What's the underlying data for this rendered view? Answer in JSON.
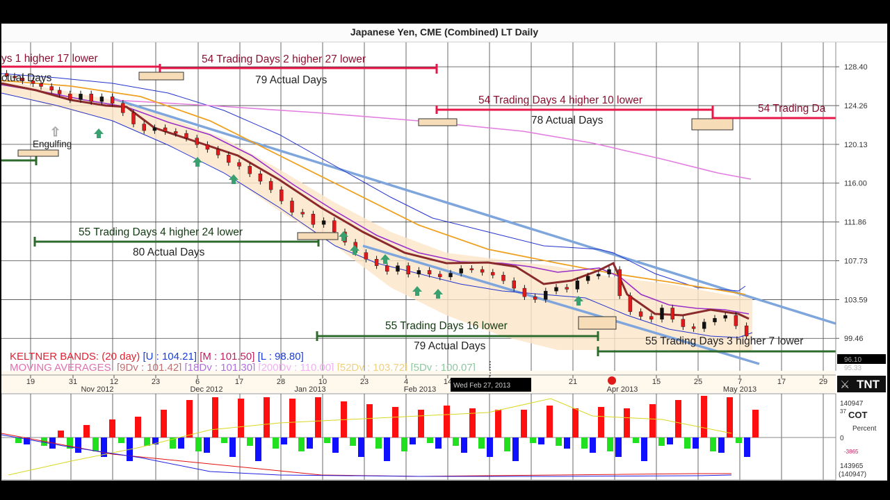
{
  "window": {
    "title": "Japanese Yen, CME (Combined) LT Daily"
  },
  "legend": {
    "keltner_text": "KELTNER BANDS: (20 day) [U : 104.21] [M : 101.50] [L : 98.80]",
    "ma_text": "MOVING AVERAGES: [9Dy : 101.42] [18Dy : 101.30] [200Dy : 110.00] [52Dy : 103.72] [5Dy : 100.07]",
    "keltner_label": "KELTNER BANDS: (20 day)",
    "keltner_u": "[U : 104.21]",
    "keltner_m": "[M : 101.50]",
    "keltner_l": "[L : 98.80]",
    "ma_label": "MOVING AVERAGES:",
    "ma_9": "[9Dy : 101.42]",
    "ma_18": "[18Dy : 101.30]",
    "ma_200": "[200Dy : 110.00]",
    "ma_52": "[52Dy : 103.72]",
    "ma_5": "[5Dy : 100.07]"
  },
  "annotations": {
    "a1_top": "ys 1 higher 17 lower",
    "a1_bottom": "ctual Days",
    "a2_top": "54 Trading Days 2 higher 27 lower",
    "a2_bottom": "79 Actual Days",
    "a3_top": "54 Trading Days 4 higher 10 lower",
    "a3_bottom": "78 Actual Days",
    "a4_top": "54 Trading Da",
    "a5_top": "55 Trading Days 4 higher 24 lower",
    "a5_bottom": "80 Actual Days",
    "a6_top": "55 Trading Days 16 lower",
    "a6_bottom": "79 Actual Days",
    "a7_top": "55 Trading Days 3 higher 7 lower",
    "engulfing": "Engulfing"
  },
  "cursor_tooltip": "Wed Feb 27, 2013",
  "price_tag": "96.10",
  "price_tag2": "95.33",
  "brand": "TNT",
  "cot_panel": {
    "title": "COT",
    "subtitle": "Percent",
    "top_value": "140947",
    "top_small": "37",
    "zero": "0",
    "neg_small": "-3865",
    "bottom_value": "143965",
    "bottom_paren": "(140947)"
  },
  "colors": {
    "up_annotation": "#e8174a",
    "down_annotation": "#2c6b2c",
    "channel": "#7ea6dc",
    "band": "#2233cc",
    "ma_orange": "#f0a020",
    "ma_pink": "#e27ee0",
    "ma_purple": "#9a2fc8",
    "ma_brown": "#8a2a2a",
    "cot_red": "#ff1010",
    "cot_blue": "#1010ff",
    "cot_green": "#20e020"
  },
  "chart_data": {
    "type": "line",
    "title": "Japanese Yen, CME (Combined) LT Daily",
    "ylim": [
      96,
      131
    ],
    "y_ticks": [
      "128.40",
      "124.26",
      "120.13",
      "116.00",
      "111.86",
      "107.73",
      "103.59",
      "99.46"
    ],
    "x_ticks": [
      "19",
      "31",
      "12",
      "23",
      "6",
      "17",
      "28",
      "10",
      "23",
      "4",
      "14",
      "25",
      "21",
      "15",
      "25",
      "7",
      "17",
      "29"
    ],
    "x_months": [
      "Nov 2012",
      "Dec 2012",
      "Jan 2013",
      "Feb 2013",
      "Apr 2013",
      "May 2013"
    ],
    "series": [
      {
        "name": "price",
        "x": [
          2,
          5,
          8,
          12,
          15,
          19,
          22,
          26,
          30,
          34,
          38,
          42,
          46,
          50,
          54,
          58,
          62,
          66,
          70,
          74,
          78,
          82,
          86,
          90,
          94,
          98,
          102,
          106,
          110,
          114,
          118,
          122,
          126,
          130,
          134,
          138,
          142,
          146,
          150,
          154,
          158,
          162,
          166,
          170,
          174,
          178,
          182,
          186,
          190,
          194,
          198,
          202,
          206,
          210,
          214,
          218,
          222,
          226,
          230,
          234,
          238,
          242,
          246,
          250,
          254,
          258,
          262,
          266,
          270,
          274,
          278,
          282
        ],
        "values": [
          127.4,
          127.2,
          126.9,
          126.6,
          126.3,
          125.9,
          125.5,
          124.9,
          125.5,
          124.7,
          125.2,
          124.5,
          123.5,
          122.3,
          121.6,
          121.9,
          121.5,
          121.3,
          120.8,
          120.1,
          119.6,
          119.0,
          118.2,
          117.8,
          117.0,
          116.2,
          115.3,
          114.1,
          112.9,
          112.7,
          111.6,
          112.0,
          110.8,
          109.7,
          108.6,
          107.9,
          107.2,
          106.6,
          107.2,
          106.3,
          106.7,
          106.3,
          106.0,
          106.4,
          106.9,
          106.8,
          106.5,
          106.2,
          105.6,
          104.8,
          103.9,
          103.6,
          104.5,
          104.9,
          104.7,
          105.6,
          106.1,
          106.3,
          106.8,
          104.0,
          102.3,
          101.8,
          101.5,
          102.7,
          101.5,
          100.7,
          100.5,
          101.2,
          101.6,
          101.9,
          100.8,
          99.7
        ]
      }
    ]
  }
}
